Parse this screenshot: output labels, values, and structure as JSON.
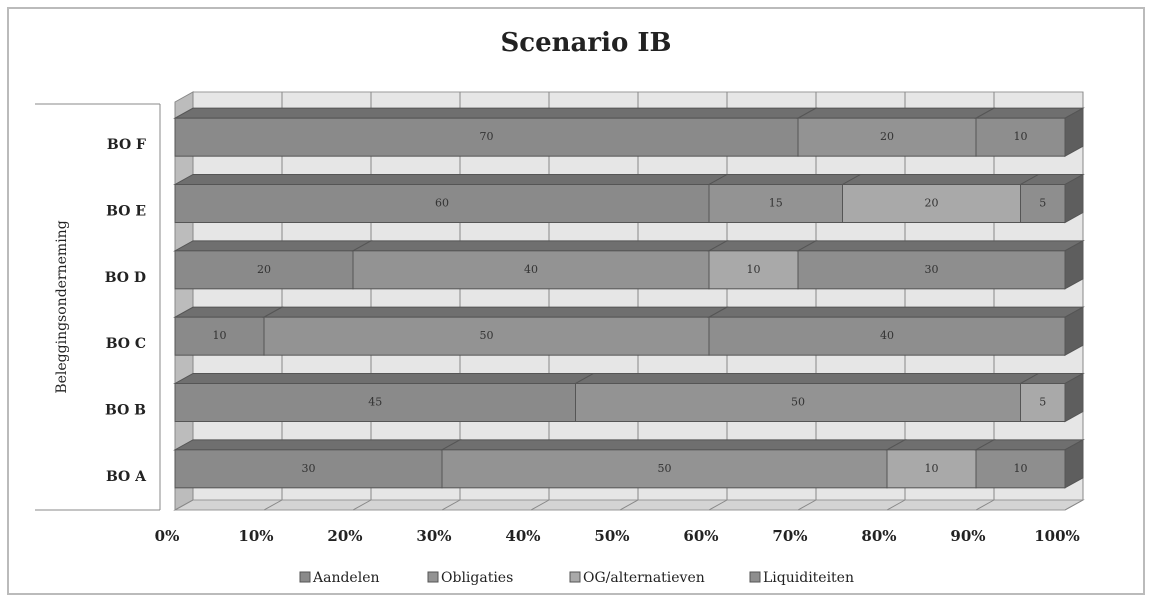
{
  "chart_data": {
    "type": "bar",
    "orientation": "horizontal",
    "stacked": true,
    "title": "Scenario IB",
    "ylabel": "Beleggingsonderneming",
    "categories": [
      "BO A",
      "BO B",
      "BO C",
      "BO D",
      "BO E",
      "BO F"
    ],
    "series": [
      {
        "name": "Aandelen",
        "color": "#8a8a8a",
        "values": [
          30,
          45,
          10,
          20,
          60,
          70
        ]
      },
      {
        "name": "Obligaties",
        "color": "#939393",
        "values": [
          50,
          50,
          50,
          40,
          15,
          20
        ]
      },
      {
        "name": "OG/alternatieven",
        "color": "#a9a9a9",
        "values": [
          10,
          5,
          null,
          10,
          20,
          null
        ]
      },
      {
        "name": "Liquiditeiten",
        "color": "#8e8e8e",
        "values": [
          10,
          null,
          40,
          30,
          5,
          10
        ]
      }
    ],
    "xlim": [
      0,
      100
    ],
    "xticks": [
      {
        "value": 0,
        "label": "0%"
      },
      {
        "value": 10,
        "label": "10%"
      },
      {
        "value": 20,
        "label": "20%"
      },
      {
        "value": 30,
        "label": "30%"
      },
      {
        "value": 40,
        "label": "40%"
      },
      {
        "value": 50,
        "label": "50%"
      },
      {
        "value": 60,
        "label": "60%"
      },
      {
        "value": 70,
        "label": "70%"
      },
      {
        "value": 80,
        "label": "80%"
      },
      {
        "value": 90,
        "label": "90%"
      },
      {
        "value": 100,
        "label": "100%"
      }
    ],
    "grid": true,
    "legend": "bottom"
  }
}
